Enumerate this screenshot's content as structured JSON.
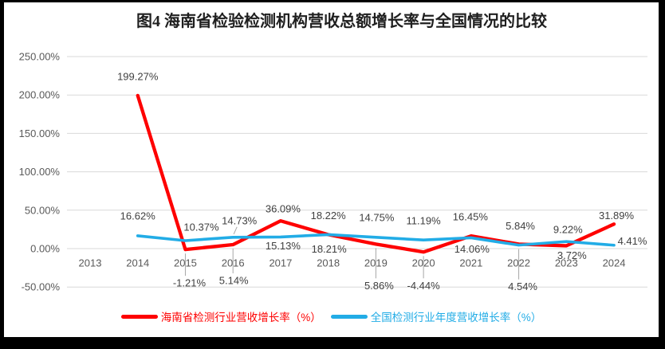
{
  "title": "图4 海南省检验检测机构营收总额增长率与全国情况的比较",
  "chart_data": {
    "type": "line",
    "title": "图4 海南省检验检测机构营收总额增长率与全国情况的比较",
    "x_categories": [
      "2013",
      "2014",
      "2015",
      "2016",
      "2017",
      "2018",
      "2019",
      "2020",
      "2021",
      "2022",
      "2023",
      "2024"
    ],
    "y_axis": {
      "format": "percent",
      "min": -50,
      "max": 250,
      "ticks": [
        {
          "label": "250.00%",
          "value": 250
        },
        {
          "label": "200.00%",
          "value": 200
        },
        {
          "label": "150.00%",
          "value": 150
        },
        {
          "label": "100.00%",
          "value": 100
        },
        {
          "label": "50.00%",
          "value": 50
        },
        {
          "label": "0.00%",
          "value": 0
        },
        {
          "label": "-50.00%",
          "value": -50
        }
      ]
    },
    "grid": true,
    "legend_position": "bottom",
    "series": [
      {
        "name": "海南省检测行业营收增长率（%）",
        "color": "#FE0000",
        "stroke_width": 4.3,
        "values": [
          null,
          199.27,
          -1.21,
          5.14,
          36.09,
          18.22,
          5.86,
          -4.44,
          16.45,
          5.84,
          3.72,
          31.89
        ],
        "data_labels": [
          "",
          "199.27%",
          "-1.21%",
          "5.14%",
          "36.09%",
          "18.22%",
          "5.86%",
          "-4.44%",
          "16.45%",
          "5.84%",
          "3.72%",
          "31.89%"
        ],
        "label_offsets": [
          null,
          [
            0,
            -24
          ],
          [
            5,
            42
          ],
          [
            1,
            45
          ],
          [
            3,
            -15
          ],
          [
            0,
            -24
          ],
          [
            4,
            52
          ],
          [
            0,
            42
          ],
          [
            -1,
            -24
          ],
          [
            2,
            -23
          ],
          [
            7,
            12
          ],
          [
            3,
            -11
          ]
        ],
        "label_leaders": [
          null,
          null,
          "v",
          "v",
          null,
          null,
          "v",
          "v",
          null,
          null,
          null,
          null
        ]
      },
      {
        "name": "全国检测行业年度营收增长率（%）",
        "color": "#22ACE6",
        "stroke_width": 3.6,
        "values": [
          null,
          16.62,
          10.37,
          14.73,
          15.13,
          18.21,
          14.75,
          11.19,
          14.06,
          4.54,
          9.22,
          4.41
        ],
        "data_labels": [
          "",
          "16.62%",
          "10.37%",
          "14.73%",
          "15.13%",
          "18.21%",
          "14.75%",
          "11.19%",
          "14.06%",
          "4.54%",
          "9.22%",
          "4.41%"
        ],
        "label_offsets": [
          null,
          [
            0,
            -25
          ],
          [
            20,
            -17
          ],
          [
            8,
            -21
          ],
          [
            3,
            11
          ],
          [
            1,
            18
          ],
          [
            1,
            -25
          ],
          [
            0,
            -24
          ],
          [
            1,
            14
          ],
          [
            5,
            52
          ],
          [
            2,
            -15
          ],
          [
            23,
            -5
          ]
        ],
        "label_leaders": [
          null,
          null,
          null,
          "d",
          null,
          null,
          null,
          null,
          null,
          "v",
          null,
          null
        ]
      }
    ],
    "styles": {
      "gridline_color": "#D9D9D9",
      "tick_color": "#595959",
      "label_color": "#404040",
      "leader_color": "#A6A6A6",
      "frame_color": "#000000",
      "background": "#FFFFFF"
    }
  }
}
